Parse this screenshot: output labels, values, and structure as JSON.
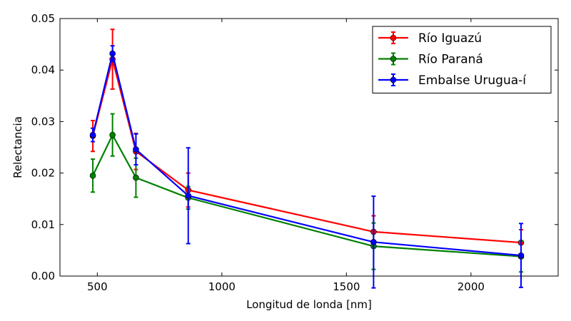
{
  "chart_data": {
    "type": "line",
    "title": "",
    "xlabel": "Longitud de londa [nm]",
    "ylabel": "Relectancia",
    "xlim": [
      350,
      2350
    ],
    "ylim": [
      0,
      0.05
    ],
    "xticks": [
      500,
      1000,
      1500,
      2000
    ],
    "xtick_labels": [
      "500",
      "1000",
      "1500",
      "2000"
    ],
    "yticks": [
      0,
      0.01,
      0.02,
      0.03,
      0.04,
      0.05
    ],
    "ytick_labels": [
      "0.00",
      "0.01",
      "0.02",
      "0.03",
      "0.04",
      "0.05"
    ],
    "legend_position": "top-right",
    "grid": false,
    "x": [
      482,
      561,
      655,
      865,
      1609,
      2201
    ],
    "series": [
      {
        "name": "Río Iguazú",
        "color": "#ff0000",
        "values": [
          0.0272,
          0.0421,
          0.0242,
          0.0167,
          0.0086,
          0.0065
        ],
        "errors": [
          0.003,
          0.0058,
          0.0035,
          0.0033,
          0.0031,
          0.0025
        ]
      },
      {
        "name": "Río Paraná",
        "color": "#008000",
        "values": [
          0.0195,
          0.0274,
          0.0191,
          0.0152,
          0.0058,
          0.0038
        ],
        "errors": [
          0.0032,
          0.0041,
          0.0038,
          0.0022,
          0.0045,
          0.003
        ]
      },
      {
        "name": "Embalse Urugua-í",
        "color": "#0000ff",
        "values": [
          0.0274,
          0.0432,
          0.0246,
          0.0156,
          0.0066,
          0.004
        ],
        "errors": [
          0.0013,
          0.0015,
          0.003,
          0.0093,
          0.0089,
          0.0062
        ]
      }
    ]
  }
}
